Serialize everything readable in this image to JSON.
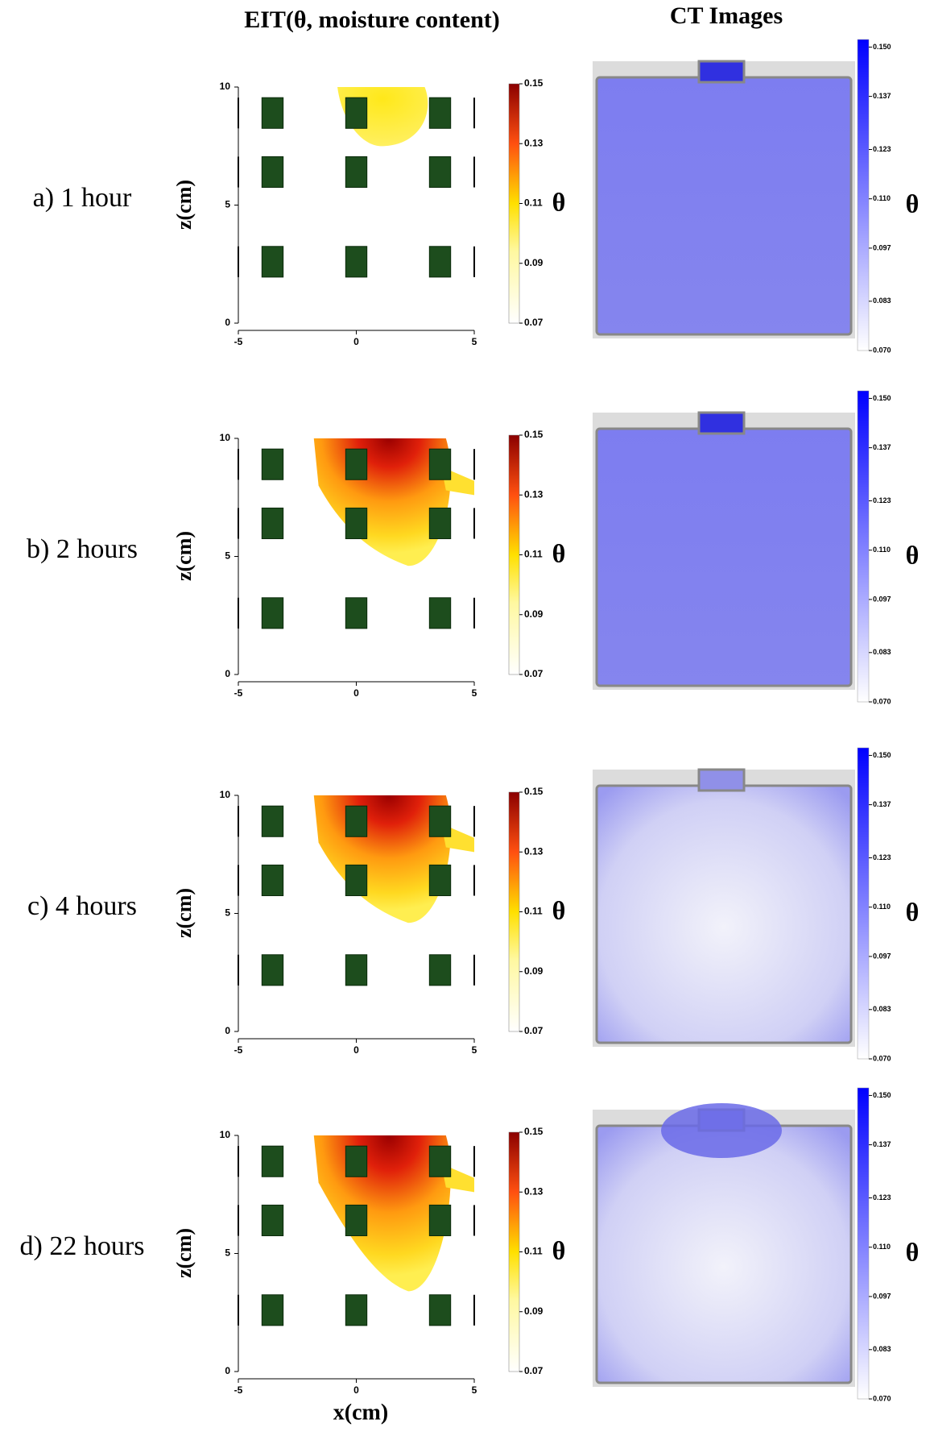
{
  "titles": {
    "eit": "EIT(θ, moisture content)",
    "ct": "CT Images"
  },
  "rows": [
    {
      "label": "a) 1 hour"
    },
    {
      "label": "b) 2 hours"
    },
    {
      "label": "c) 4 hours"
    },
    {
      "label": "d) 22 hours"
    }
  ],
  "eit_axes": {
    "xticks": [
      -5,
      0,
      5
    ],
    "yticks": [
      0,
      5,
      10
    ],
    "xlim": [
      -5,
      5
    ],
    "ylim": [
      0,
      10
    ],
    "xlabel": "x(cm)",
    "ylabel": "z(cm)",
    "colorbar_ticks": [
      0.07,
      0.09,
      0.11,
      0.13,
      0.15
    ],
    "colorbar_lim": [
      0.07,
      0.15
    ],
    "colorbar_label": "θ"
  },
  "ct_colorbar": {
    "lim": [
      0.07,
      0.152
    ],
    "ticks": [
      {
        "value": 0.07,
        "label": "0.070"
      },
      {
        "value": 0.083,
        "label": "0.083"
      },
      {
        "value": 0.097,
        "label": "0.097"
      },
      {
        "value": 0.11,
        "label": "0.110"
      },
      {
        "value": 0.123,
        "label": "0.123"
      },
      {
        "value": 0.137,
        "label": "0.137"
      },
      {
        "value": 0.15,
        "label": "0.150"
      }
    ],
    "label": "θ"
  }
}
